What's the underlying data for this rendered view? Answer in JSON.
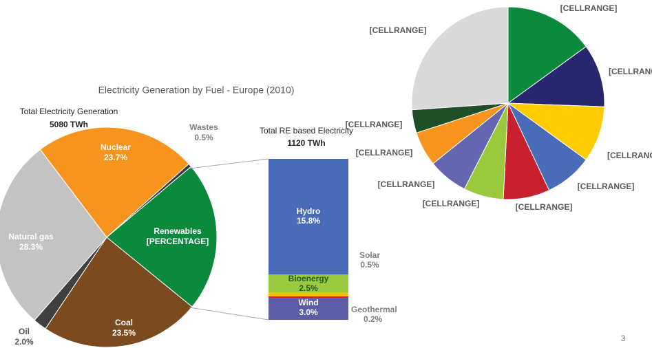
{
  "chart_data": [
    {
      "type": "pie",
      "title": "Electricity Generation by Fuel - Europe (2010)",
      "annotations": [
        "Total Electricity Generation",
        "5080 TWh"
      ],
      "categories": [
        "Renewables",
        "Coal",
        "Oil",
        "Natural gas",
        "Nuclear",
        "Wastes"
      ],
      "values": [
        22.0,
        23.5,
        2.0,
        28.3,
        23.7,
        0.5
      ],
      "value_labels": [
        "[PERCENTAGE]",
        "23.5%",
        "2.0%",
        "28.3%",
        "23.7%",
        "0.5%"
      ],
      "colors": [
        "#0b8a3e",
        "#7b4a1e",
        "#404040",
        "#c3c3c3",
        "#f7941d",
        "#3a3a3a"
      ]
    },
    {
      "type": "bar",
      "title": "Total RE based Electricity",
      "subtitle": "1120 TWh",
      "stacked": true,
      "series": [
        {
          "name": "Wind",
          "color": "#5b5ea6",
          "values": [
            3.0
          ],
          "value_labels": [
            "3.0%"
          ]
        },
        {
          "name": "Geothermal",
          "color": "#c8202f",
          "values": [
            0.2
          ],
          "value_labels": [
            "0.2%"
          ]
        },
        {
          "name": "Solar",
          "color": "#ffc000",
          "values": [
            0.5
          ],
          "value_labels": [
            "0.5%"
          ]
        },
        {
          "name": "Bioenergy",
          "color": "#9bc93d",
          "values": [
            2.5
          ],
          "value_labels": [
            "2.5%"
          ]
        },
        {
          "name": "Hydro",
          "color": "#4a6bb8",
          "values": [
            15.8
          ],
          "value_labels": [
            "15.8%"
          ]
        }
      ]
    },
    {
      "type": "pie",
      "labels": [
        "[CELLRANGE]",
        "[CELLRANGE]",
        "[CELLRANGE]",
        "[CELLRANGE]",
        "[CELLRANGE]",
        "[CELLRANGE]",
        "[CELLRANGE]",
        "[CELLRANGE]",
        "[CELLRANGE]",
        "[CELLRANGE]"
      ],
      "values": [
        15.0,
        10.6,
        9.4,
        8.0,
        7.8,
        6.7,
        6.7,
        5.8,
        3.9,
        26.1
      ],
      "colors": [
        "#0b8a3e",
        "#26276e",
        "#ffcc00",
        "#4a6bb8",
        "#c8202f",
        "#9bc93d",
        "#6466b0",
        "#f7941d",
        "#1f4f28",
        "#d9d9d9"
      ]
    }
  ],
  "page_number": "3"
}
